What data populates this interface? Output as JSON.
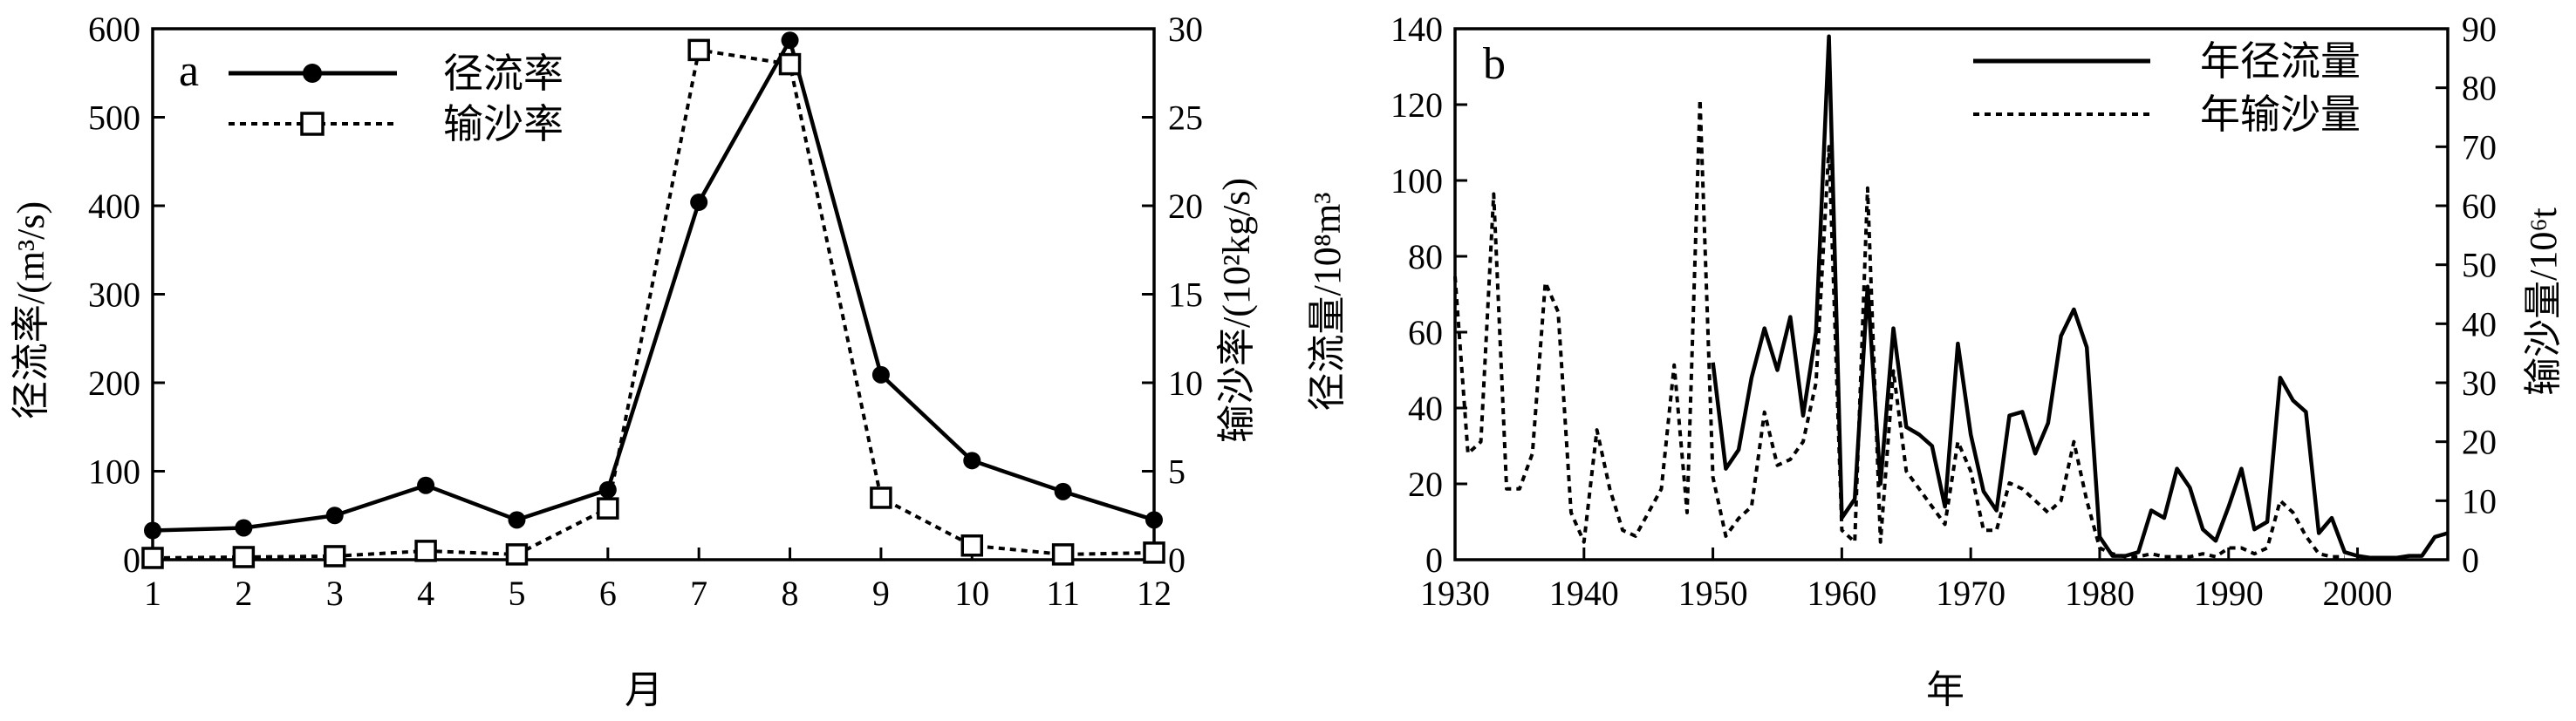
{
  "chart_data": [
    {
      "panel_label": "a",
      "type": "line",
      "xlabel": "月",
      "ylabel": "径流率/(m³/s)",
      "ylabel_right": "输沙率/(10²kg/s)",
      "x": [
        1,
        2,
        3,
        4,
        5,
        6,
        7,
        8,
        9,
        10,
        11,
        12
      ],
      "xlim": [
        1,
        12
      ],
      "ylim": [
        0,
        600
      ],
      "ylim_right": [
        0,
        30
      ],
      "xticks": [
        "1",
        "2",
        "3",
        "4",
        "5",
        "6",
        "7",
        "8",
        "9",
        "10",
        "11",
        "12"
      ],
      "yticks": [
        "0",
        "100",
        "200",
        "300",
        "400",
        "500",
        "600"
      ],
      "yticks_right": [
        "0",
        "5",
        "10",
        "15",
        "20",
        "25",
        "30"
      ],
      "legend_position": "top-left",
      "series": [
        {
          "name": "径流率",
          "axis": "left",
          "style": "solid",
          "marker": "filled-circle",
          "values": [
            33,
            36,
            50,
            84,
            45,
            79,
            404,
            587,
            209,
            112,
            77,
            45
          ]
        },
        {
          "name": "输沙率",
          "axis": "right",
          "style": "dotted",
          "marker": "open-square",
          "values": [
            0.1,
            0.15,
            0.2,
            0.5,
            0.3,
            2.9,
            28.8,
            28.0,
            3.5,
            0.8,
            0.3,
            0.4
          ]
        }
      ]
    },
    {
      "panel_label": "b",
      "type": "line",
      "xlabel": "年",
      "ylabel": "径流量/10⁸m³",
      "ylabel_right": "输沙量/10⁶t",
      "xlim": [
        1930,
        2007
      ],
      "ylim": [
        0,
        140
      ],
      "ylim_right": [
        0,
        90
      ],
      "xticks": [
        "1930",
        "1940",
        "1950",
        "1960",
        "1970",
        "1980",
        "1990",
        "2000"
      ],
      "yticks": [
        "0",
        "20",
        "40",
        "60",
        "80",
        "100",
        "120",
        "140"
      ],
      "yticks_right": [
        "0",
        "10",
        "20",
        "30",
        "40",
        "50",
        "60",
        "70",
        "80",
        "90"
      ],
      "legend_position": "top-right",
      "series": [
        {
          "name": "年径流量",
          "axis": "left",
          "style": "solid",
          "x": [
            1950,
            1951,
            1952,
            1953,
            1954,
            1955,
            1956,
            1957,
            1958,
            1959,
            1960,
            1961,
            1962,
            1963,
            1964,
            1965,
            1966,
            1967,
            1968,
            1969,
            1970,
            1971,
            1972,
            1973,
            1974,
            1975,
            1976,
            1977,
            1978,
            1979,
            1980,
            1981,
            1982,
            1983,
            1984,
            1985,
            1986,
            1987,
            1988,
            1989,
            1990,
            1991,
            1992,
            1993,
            1994,
            1995,
            1996,
            1997,
            1998,
            1999,
            2000,
            2001,
            2002,
            2003,
            2004,
            2005,
            2006,
            2007
          ],
          "values": [
            52,
            24,
            29,
            48,
            61,
            50,
            64,
            38,
            60,
            138,
            11,
            16,
            72,
            20,
            61,
            35,
            33,
            30,
            14,
            57,
            33,
            18,
            13,
            38,
            39,
            28,
            36,
            59,
            66,
            56,
            6,
            1,
            1,
            2,
            13,
            11,
            24,
            19,
            8,
            5,
            14,
            24,
            8,
            10,
            48,
            42,
            39,
            7,
            11,
            2,
            1,
            0.5,
            0.5,
            0.5,
            1,
            1,
            6,
            7
          ]
        },
        {
          "name": "年输沙量",
          "axis": "right",
          "style": "dotted",
          "x": [
            1930,
            1931,
            1932,
            1933,
            1934,
            1935,
            1936,
            1937,
            1938,
            1939,
            1940,
            1941,
            1942,
            1943,
            1944,
            1945,
            1946,
            1947,
            1948,
            1949,
            1950,
            1951,
            1952,
            1953,
            1954,
            1955,
            1956,
            1957,
            1958,
            1959,
            1960,
            1961,
            1962,
            1963,
            1964,
            1965,
            1966,
            1967,
            1968,
            1969,
            1970,
            1971,
            1972,
            1973,
            1974,
            1975,
            1976,
            1977,
            1978,
            1979,
            1980,
            1981,
            1982,
            1983,
            1984,
            1985,
            1986,
            1987,
            1988,
            1989,
            1990,
            1991,
            1992,
            1993,
            1994,
            1995,
            1996,
            1997,
            1998,
            1999
          ],
          "values": [
            48,
            18,
            20,
            62,
            12,
            12,
            18,
            47,
            42,
            8,
            3,
            22,
            12,
            5,
            4,
            8,
            12,
            33,
            8,
            78,
            14,
            4,
            7,
            9,
            25,
            16,
            17,
            20,
            30,
            70,
            5,
            3,
            63,
            3,
            32,
            15,
            12,
            9,
            6,
            20,
            15,
            5,
            5,
            13,
            12,
            10,
            8,
            10,
            20,
            10,
            2,
            1,
            0.5,
            0.5,
            1,
            0.5,
            0.5,
            0.5,
            1,
            0.5,
            2,
            2,
            1,
            2,
            10,
            8,
            4,
            1,
            0.5,
            0.5
          ]
        }
      ]
    }
  ]
}
